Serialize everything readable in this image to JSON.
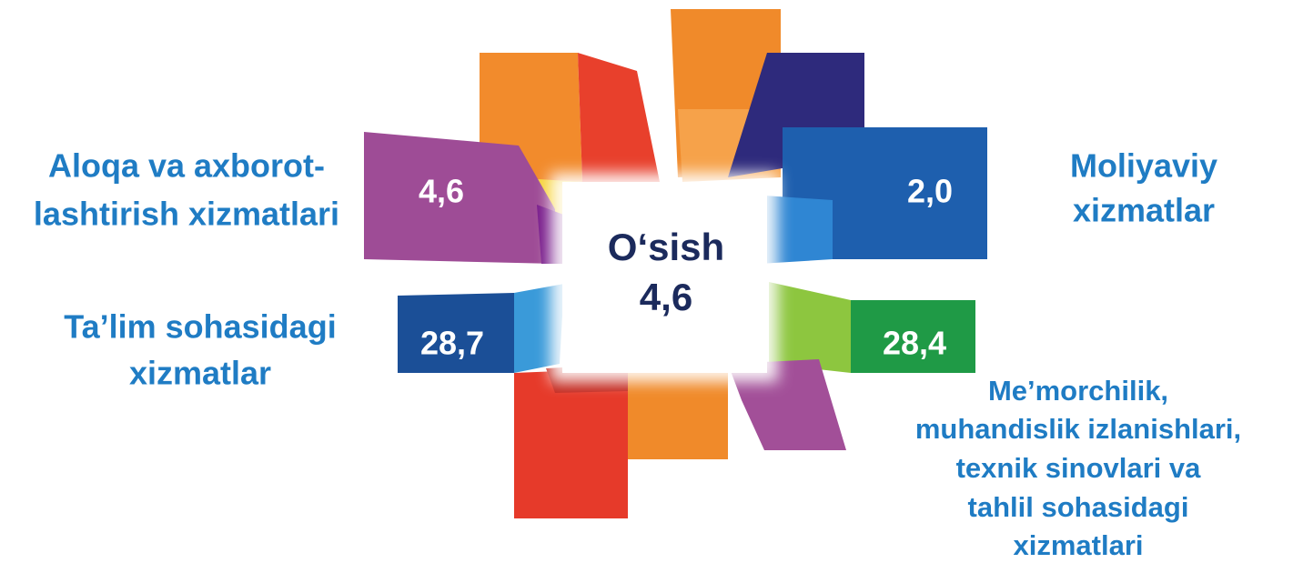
{
  "center": {
    "label": "O‘sish",
    "value": "4,6"
  },
  "items": [
    {
      "label": [
        "Aloqa va axborot-",
        "lashtirish xizmatlari"
      ],
      "value": "4,6"
    },
    {
      "label": [
        "Moliyaviy",
        "xizmatlar"
      ],
      "value": "2,0"
    },
    {
      "label": [
        "Ta’lim sohasidagi",
        "xizmatlar"
      ],
      "value": "28,7"
    },
    {
      "label": [
        "Me’morchilik,",
        "muhandislik izlanishlari,",
        "texnik sinovlari va",
        "tahlil sohasidagi",
        "xizmatlari"
      ],
      "value": "28,4"
    }
  ]
}
